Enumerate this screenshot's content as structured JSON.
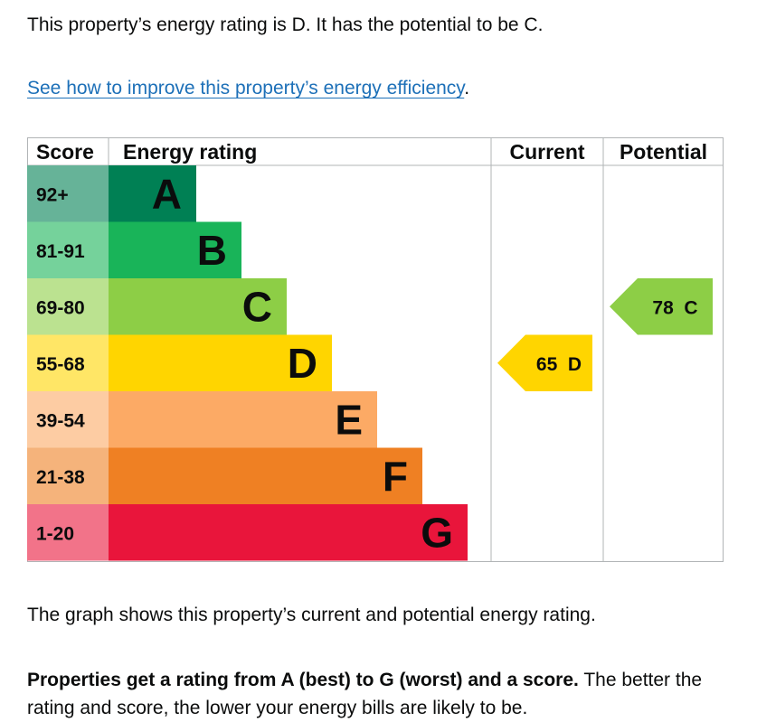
{
  "text": {
    "intro": "This property’s energy rating is D. It has the potential to be C.",
    "link_text": "See how to improve this property’s energy efficiency",
    "link_suffix": ".",
    "summary": "The graph shows this property’s current and potential energy rating.",
    "note_bold": "Properties get a rating from A (best) to G (worst) and a score.",
    "note_rest": " The better the rating and score, the lower your energy bills are likely to be."
  },
  "chart_data": {
    "type": "bar",
    "headers": {
      "score": "Score",
      "rating": "Energy rating",
      "current": "Current",
      "potential": "Potential"
    },
    "bands": [
      {
        "letter": "A",
        "range": "92+",
        "color": "#008054",
        "tint": "#66b398"
      },
      {
        "letter": "B",
        "range": "81-91",
        "color": "#19b459",
        "tint": "#75d29b"
      },
      {
        "letter": "C",
        "range": "69-80",
        "color": "#8dce46",
        "tint": "#bbe290"
      },
      {
        "letter": "D",
        "range": "55-68",
        "color": "#ffd500",
        "tint": "#ffe666"
      },
      {
        "letter": "E",
        "range": "39-54",
        "color": "#fcaa65",
        "tint": "#fdcca3"
      },
      {
        "letter": "F",
        "range": "21-38",
        "color": "#ef8023",
        "tint": "#f5b37b"
      },
      {
        "letter": "G",
        "range": "1-20",
        "color": "#e9153b",
        "tint": "#f27389"
      }
    ],
    "current": {
      "score": 65,
      "letter": "D",
      "label": "65  D",
      "color": "#ffd500"
    },
    "potential": {
      "score": 78,
      "letter": "C",
      "label": "78  C",
      "color": "#8dce46"
    }
  }
}
